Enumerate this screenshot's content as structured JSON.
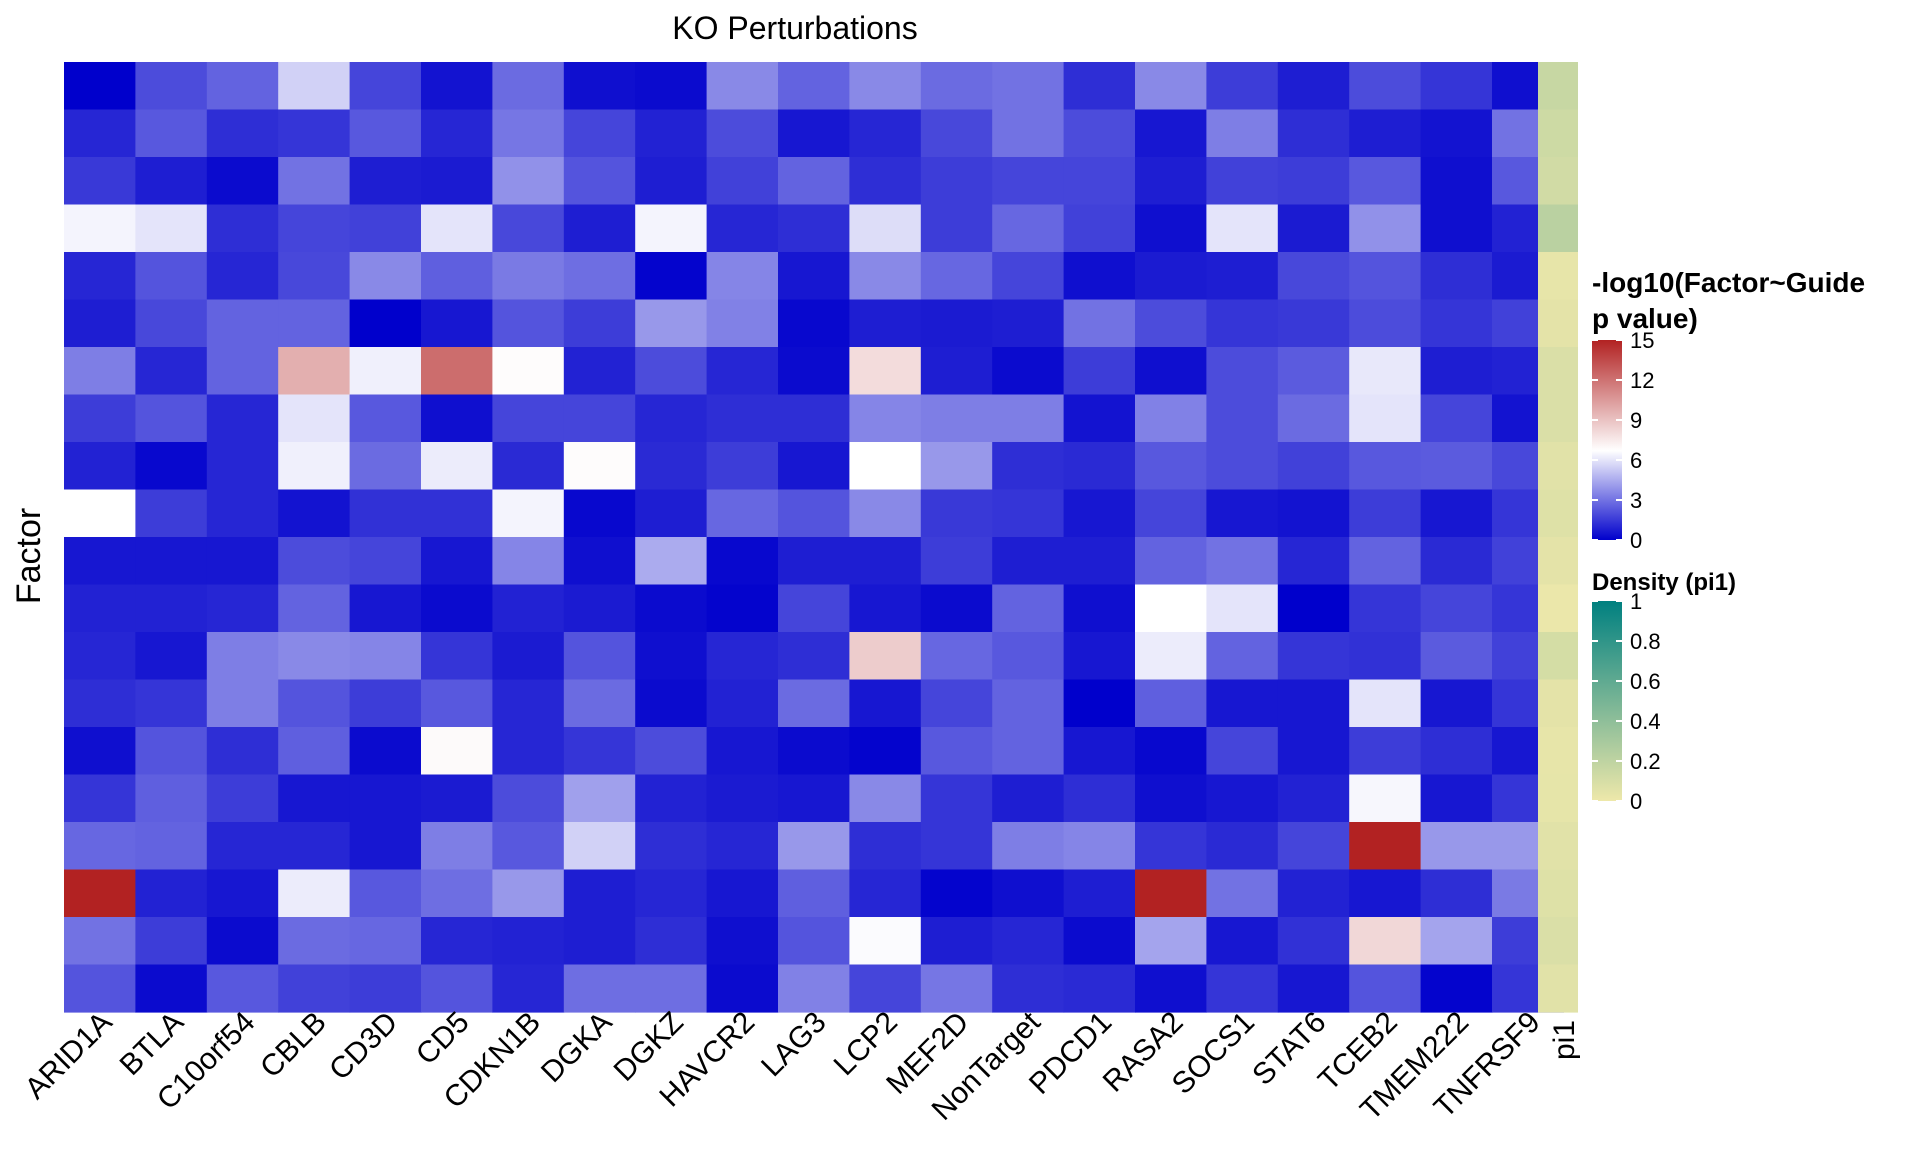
{
  "chart_data": {
    "type": "heatmap",
    "title": "KO Perturbations",
    "ylabel": "Factor",
    "columns": [
      "ARID1A",
      "BTLA",
      "C10orf54",
      "CBLB",
      "CD3D",
      "CD5",
      "CDKN1B",
      "DGKA",
      "DGKZ",
      "HAVCR2",
      "LAG3",
      "LCP2",
      "MEF2D",
      "NonTarget",
      "PDCD1",
      "RASA2",
      "SOCS1",
      "STAT6",
      "TCEB2",
      "TMEM222",
      "TNFRSF9"
    ],
    "row_count": 20,
    "values": [
      [
        0.0,
        2.0,
        2.6,
        5.5,
        1.8,
        0.5,
        2.8,
        0.4,
        0.3,
        3.6,
        2.6,
        3.6,
        2.8,
        3.0,
        1.2,
        3.6,
        1.6,
        0.8,
        2.0,
        1.4,
        0.4
      ],
      [
        1.0,
        2.3,
        1.2,
        1.4,
        2.3,
        1.0,
        3.1,
        1.8,
        0.9,
        2.0,
        0.6,
        1.0,
        1.9,
        3.0,
        2.0,
        0.6,
        3.3,
        1.2,
        0.8,
        0.5,
        3.0
      ],
      [
        1.5,
        0.8,
        0.3,
        3.0,
        0.8,
        0.7,
        3.8,
        2.2,
        0.8,
        1.7,
        2.6,
        1.2,
        1.6,
        1.8,
        1.8,
        0.8,
        1.7,
        1.6,
        2.3,
        0.4,
        2.3
      ],
      [
        6.4,
        6.0,
        1.2,
        1.8,
        1.7,
        6.0,
        1.9,
        0.8,
        6.4,
        1.0,
        1.2,
        5.8,
        1.6,
        2.7,
        1.7,
        0.4,
        6.0,
        0.7,
        3.8,
        0.4,
        0.9
      ],
      [
        1.0,
        2.2,
        1.0,
        1.9,
        3.6,
        2.5,
        3.2,
        2.9,
        0.1,
        3.5,
        0.6,
        3.6,
        2.7,
        1.8,
        0.4,
        0.7,
        0.8,
        1.9,
        2.2,
        1.2,
        0.7
      ],
      [
        0.8,
        1.9,
        2.6,
        2.6,
        0.0,
        0.6,
        2.2,
        1.6,
        4.0,
        3.4,
        0.2,
        0.8,
        0.7,
        0.8,
        3.0,
        2.0,
        1.4,
        1.5,
        2.0,
        1.4,
        1.7
      ],
      [
        3.3,
        1.0,
        2.6,
        9.7,
        6.3,
        12.2,
        6.8,
        0.9,
        2.0,
        1.0,
        0.3,
        8.0,
        0.8,
        0.3,
        1.6,
        0.4,
        2.0,
        2.4,
        6.1,
        0.8,
        0.9
      ],
      [
        1.6,
        2.2,
        1.0,
        6.0,
        2.3,
        0.4,
        1.8,
        1.8,
        1.0,
        1.2,
        1.2,
        3.5,
        3.3,
        3.3,
        0.5,
        3.4,
        2.0,
        2.8,
        6.0,
        1.8,
        0.5
      ],
      [
        0.9,
        0.2,
        1.0,
        6.3,
        2.8,
        6.2,
        1.1,
        6.8,
        1.1,
        1.6,
        0.6,
        6.7,
        4.0,
        1.2,
        1.1,
        2.3,
        2.0,
        1.7,
        2.3,
        2.4,
        1.9
      ],
      [
        6.7,
        1.6,
        1.0,
        0.5,
        1.3,
        1.3,
        6.4,
        0.2,
        0.8,
        2.7,
        2.2,
        3.6,
        1.5,
        1.4,
        0.6,
        1.8,
        0.6,
        0.5,
        1.6,
        0.6,
        1.4
      ],
      [
        0.6,
        0.6,
        0.6,
        2.0,
        1.8,
        0.6,
        3.5,
        0.4,
        4.5,
        0.2,
        0.8,
        0.8,
        1.6,
        0.8,
        0.8,
        2.6,
        3.0,
        1.0,
        2.6,
        1.1,
        1.7
      ],
      [
        0.9,
        0.9,
        1.0,
        2.6,
        0.6,
        0.3,
        0.9,
        0.7,
        0.3,
        0.1,
        1.8,
        0.6,
        0.3,
        2.6,
        0.4,
        6.7,
        6.0,
        0.0,
        1.4,
        1.8,
        1.4
      ],
      [
        1.0,
        0.6,
        3.3,
        3.6,
        3.5,
        1.4,
        0.7,
        2.2,
        0.4,
        1.0,
        1.2,
        8.6,
        2.7,
        2.3,
        0.6,
        6.2,
        2.6,
        1.4,
        1.3,
        2.4,
        1.7
      ],
      [
        1.2,
        1.4,
        3.3,
        2.2,
        1.6,
        2.3,
        1.0,
        2.8,
        0.3,
        0.9,
        2.8,
        0.6,
        1.8,
        2.6,
        0.0,
        2.5,
        0.6,
        0.6,
        6.0,
        0.6,
        1.4
      ],
      [
        0.4,
        2.2,
        1.2,
        2.5,
        0.3,
        6.9,
        1.0,
        1.4,
        2.0,
        0.6,
        0.3,
        0.1,
        2.3,
        2.6,
        0.6,
        0.2,
        1.8,
        0.6,
        1.6,
        1.2,
        0.6
      ],
      [
        1.4,
        2.5,
        1.6,
        0.6,
        0.6,
        0.7,
        2.0,
        4.2,
        0.9,
        0.7,
        0.6,
        3.6,
        1.4,
        0.8,
        1.2,
        0.4,
        0.6,
        0.9,
        6.5,
        0.6,
        1.4
      ],
      [
        2.7,
        2.6,
        1.0,
        1.0,
        0.6,
        3.3,
        2.3,
        5.5,
        1.2,
        1.0,
        4.0,
        1.2,
        1.4,
        3.3,
        3.5,
        1.4,
        1.1,
        1.8,
        15.0,
        4.0,
        4.0
      ],
      [
        15.0,
        0.9,
        0.6,
        6.2,
        2.3,
        2.9,
        4.0,
        0.8,
        1.0,
        0.6,
        2.5,
        1.0,
        0.1,
        0.4,
        0.8,
        15.0,
        3.0,
        0.9,
        0.6,
        1.2,
        3.2
      ],
      [
        3.0,
        1.6,
        0.3,
        2.8,
        2.7,
        1.0,
        0.9,
        0.8,
        1.2,
        0.4,
        2.2,
        6.6,
        0.8,
        1.0,
        0.3,
        4.3,
        0.6,
        1.3,
        8.2,
        4.3,
        1.6
      ],
      [
        2.2,
        0.3,
        2.3,
        1.7,
        1.6,
        2.2,
        1.0,
        2.9,
        2.9,
        0.3,
        3.4,
        1.8,
        3.1,
        1.2,
        1.1,
        0.4,
        1.4,
        0.6,
        2.2,
        0.1,
        1.4
      ]
    ],
    "pi1": [
      0.3,
      0.25,
      0.22,
      0.4,
      0.05,
      0.08,
      0.15,
      0.15,
      0.1,
      0.12,
      0.08,
      0.02,
      0.2,
      0.08,
      0.05,
      0.06,
      0.1,
      0.12,
      0.15,
      0.1
    ],
    "color_scale": {
      "title_line1": "-log10(Factor~Guide",
      "title_line2": "p value)",
      "ticks": [
        0,
        3,
        6,
        9,
        12,
        15
      ],
      "ticks_label": [
        "0",
        "3",
        "6",
        "9",
        "12",
        "15"
      ],
      "range": [
        0,
        15
      ],
      "low": "#0000cc",
      "mid": "#ffffff",
      "high": "#b22222",
      "midpoint": 6.7
    },
    "density_scale": {
      "title": "Density (pi1)",
      "ticks": [
        0,
        0.2,
        0.4,
        0.6,
        0.8,
        1
      ],
      "ticks_label": [
        "0",
        "0.2",
        "0.4",
        "0.6",
        "0.8",
        "1"
      ],
      "range": [
        0,
        1
      ],
      "low": "#eee8aa",
      "high": "#008080"
    },
    "annotation_label": "pi1"
  }
}
